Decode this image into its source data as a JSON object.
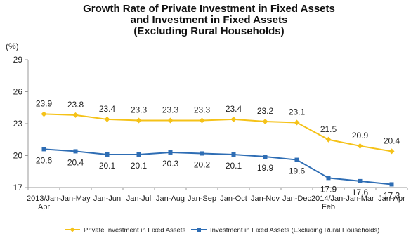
{
  "chart_data": {
    "type": "line",
    "title_lines": [
      "Growth Rate of Private Investment in Fixed Assets",
      "and Investment in Fixed Assets",
      "(Excluding Rural Households)"
    ],
    "ylabel": "(%)",
    "ylim": [
      17,
      29
    ],
    "yticks": [
      17,
      20,
      23,
      26,
      29
    ],
    "categories": [
      [
        "2013/Jan-",
        "Apr"
      ],
      [
        "Jan-May"
      ],
      [
        "Jan-Jun"
      ],
      [
        "Jan-Jul"
      ],
      [
        "Jan-Aug"
      ],
      [
        "Jan-Sep"
      ],
      [
        "Jan-Oct"
      ],
      [
        "Jan-Nov"
      ],
      [
        "Jan-Dec"
      ],
      [
        "2014/Jan-",
        "Feb"
      ],
      [
        "Jan-Mar"
      ],
      [
        "Jan-Apr"
      ]
    ],
    "series": [
      {
        "name": "Private Investment in Fixed Assets",
        "color": "#F5C218",
        "marker": "diamond",
        "values": [
          23.9,
          23.8,
          23.4,
          23.3,
          23.3,
          23.3,
          23.4,
          23.2,
          23.1,
          21.5,
          20.9,
          20.4
        ]
      },
      {
        "name": "Investment in Fixed Assets (Excluding Rural Households)",
        "color": "#2E6DB4",
        "marker": "square",
        "values": [
          20.6,
          20.4,
          20.1,
          20.1,
          20.3,
          20.2,
          20.1,
          19.9,
          19.6,
          17.9,
          17.6,
          17.3
        ]
      }
    ],
    "legend_position": "bottom",
    "grid": false
  }
}
